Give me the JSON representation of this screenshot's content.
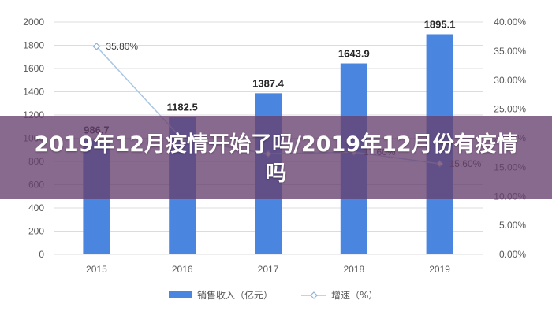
{
  "chart_data": {
    "type": "bar",
    "categories": [
      "2015",
      "2016",
      "2017",
      "2018",
      "2019"
    ],
    "series": [
      {
        "name": "销售收入（亿元）",
        "type": "bar",
        "values": [
          986.7,
          1182.5,
          1387.4,
          1643.9,
          1895.1
        ],
        "labels": [
          "986.7",
          "1182.5",
          "1387.4",
          "1643.9",
          "1895.1"
        ],
        "color": "#4a86e0"
      },
      {
        "name": "增速（%）",
        "type": "line",
        "axis": "right",
        "values": [
          35.8,
          19.8,
          17.3,
          17.6,
          15.6
        ],
        "labels": [
          "35.80%",
          "",
          "",
          "17.60%",
          "15.60%"
        ],
        "color": "#a9c6e3"
      }
    ],
    "y_left": {
      "ylim": [
        0,
        2000
      ],
      "ticks": [
        "0",
        "200",
        "400",
        "600",
        "800",
        "1000",
        "1200",
        "1400",
        "1600",
        "1800",
        "2000"
      ]
    },
    "y_right": {
      "ylim": [
        0,
        40
      ],
      "ticks": [
        "0.00%",
        "5.00%",
        "10.00%",
        "15.00%",
        "20.00%",
        "25.00%",
        "30.00%",
        "35.00%",
        "40.00%"
      ]
    },
    "grid": true,
    "legend": "bottom-center"
  },
  "overlay": {
    "title": "2019年12月疫情开始了吗/2019年12月份有疫情吗"
  }
}
